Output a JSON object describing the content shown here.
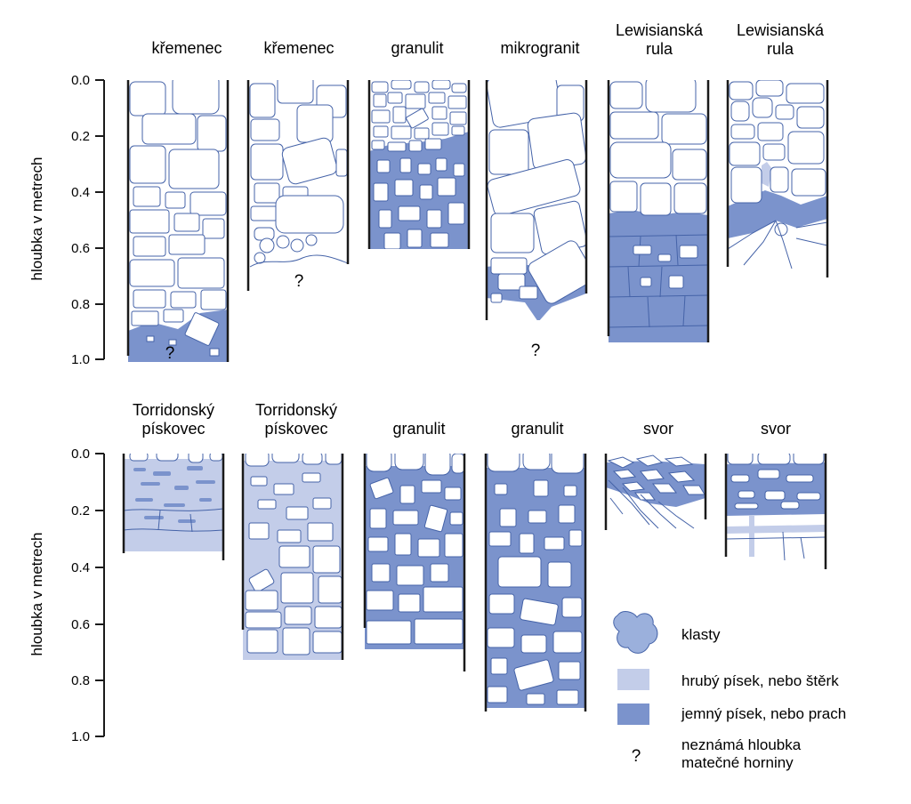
{
  "axis": {
    "ylabel": "hloubka v metrech",
    "ticks": [
      "0.0",
      "0.2",
      "0.4",
      "0.6",
      "0.8",
      "1.0"
    ]
  },
  "row1": {
    "profiles": [
      {
        "title_lines": [
          "křemenec"
        ],
        "depth": 1.0,
        "unknown_bedrock": true
      },
      {
        "title_lines": [
          "křemenec"
        ],
        "depth": 0.75,
        "unknown_bedrock": true
      },
      {
        "title_lines": [
          "granulit"
        ],
        "depth": 0.6,
        "unknown_bedrock": false
      },
      {
        "title_lines": [
          "mikrogranit"
        ],
        "depth": 0.85,
        "unknown_bedrock": true
      },
      {
        "title_lines": [
          "Lewisianská",
          "rula"
        ],
        "depth": 0.9,
        "unknown_bedrock": false
      },
      {
        "title_lines": [
          "Lewisianská",
          "rula"
        ],
        "depth": 0.7,
        "unknown_bedrock": false
      }
    ]
  },
  "row2": {
    "profiles": [
      {
        "title_lines": [
          "Torridonský",
          "pískovec"
        ],
        "depth": 0.37
      },
      {
        "title_lines": [
          "Torridonský",
          "pískovec"
        ],
        "depth": 0.72
      },
      {
        "title_lines": [
          "granulit"
        ],
        "depth": 0.75
      },
      {
        "title_lines": [
          "granulit"
        ],
        "depth": 0.9
      },
      {
        "title_lines": [
          "svor"
        ],
        "depth": 0.26
      },
      {
        "title_lines": [
          "svor"
        ],
        "depth": 0.4
      }
    ]
  },
  "legend": {
    "clasts": "klasty",
    "coarse": "hrubý písek, nebo štěrk",
    "fine": "jemný písek, nebo prach",
    "unknown_symbol": "?",
    "unknown_line1": "neznámá hloubka",
    "unknown_line2": "matečné horniny"
  },
  "colors": {
    "fine": "#7b93cc",
    "coarse": "#c3cde9",
    "clast_outline": "#4563a8",
    "wall": "#1a1a1a"
  }
}
